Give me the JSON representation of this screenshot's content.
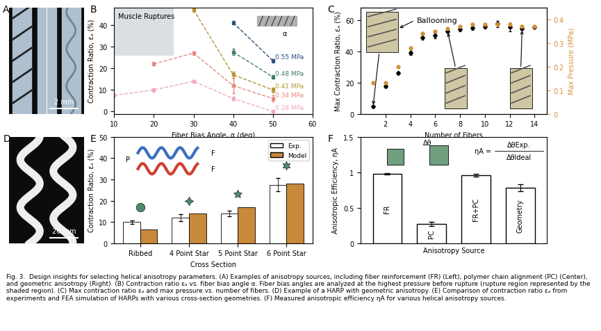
{
  "chart_data": [
    {
      "panel": "A",
      "type": "image",
      "annotations": [
        "2 mm"
      ]
    },
    {
      "panel": "B",
      "type": "line",
      "xlabel": "Fiber Bias Angle, α (deg)",
      "ylabel": "Contraction Ratio, εₐ (%)",
      "xlim": [
        10,
        60
      ],
      "xticks": [
        10,
        20,
        30,
        40,
        50,
        60
      ],
      "ylim": [
        -1,
        48
      ],
      "yticks": [
        0,
        10,
        20,
        30,
        40
      ],
      "annotations": [
        "Muscle Ruptures",
        "α"
      ],
      "series": [
        {
          "name": "0.55 MPa",
          "color": "#2b4f7e",
          "marker": "square",
          "line_style": "dashed",
          "x": [
            40,
            50
          ],
          "values": [
            41,
            23.5
          ],
          "errors": [
            0.8,
            0.8
          ]
        },
        {
          "name": "0.48 MPa",
          "color": "#3f7f63",
          "marker": "square",
          "line_style": "dashed",
          "x": [
            40,
            50
          ],
          "values": [
            27.5,
            16
          ],
          "errors": [
            1.5,
            0.8
          ]
        },
        {
          "name": "0.41 MPa",
          "color": "#b5952f",
          "marker": "square",
          "line_style": "dashed",
          "x": [
            30,
            40,
            50
          ],
          "values": [
            47,
            17,
            10
          ],
          "errors": [
            0.8,
            1.5,
            1.2
          ]
        },
        {
          "name": "0.34 MPa",
          "color": "#e58a80",
          "marker": "square",
          "line_style": "dashed",
          "x": [
            20,
            30,
            40,
            50
          ],
          "values": [
            22,
            27,
            12,
            6
          ],
          "errors": [
            0.8,
            0.8,
            3.5,
            1.5
          ]
        },
        {
          "name": "0.28 MPa",
          "color": "#f2a9bd",
          "marker": "square",
          "line_style": "dashed",
          "x": [
            10,
            20,
            30,
            40,
            50
          ],
          "values": [
            7.5,
            10,
            14,
            6,
            0
          ],
          "errors": [
            0.5,
            0.8,
            0.5,
            0.8,
            0.5
          ]
        }
      ]
    },
    {
      "panel": "C",
      "type": "scatter",
      "xlabel": "Number of Fibers",
      "ylabel": "Max Contraction Ratio, εₐ (%)",
      "y2label": "Max Pressure (MPa)",
      "xlim": [
        0,
        15
      ],
      "xticks": [
        2,
        4,
        6,
        8,
        10,
        12,
        14
      ],
      "ylim": [
        0,
        68
      ],
      "yticks": [
        0,
        20,
        40,
        60
      ],
      "y2lim": [
        0,
        0.45
      ],
      "y2ticks": [
        0,
        0.1,
        0.2,
        0.3,
        0.4
      ],
      "annotations": [
        "Ballooning"
      ],
      "x": [
        1,
        2,
        3,
        4,
        5,
        6,
        7,
        8,
        9,
        10,
        11,
        12,
        13,
        14
      ],
      "series": [
        {
          "color": "#000000",
          "marker": "diamond",
          "values": [
            4.5,
            17.5,
            26,
            39,
            49,
            50,
            53,
            54,
            55,
            56,
            57.5,
            55.5,
            54.5,
            55.5
          ],
          "errors": [
            0.5,
            0.8,
            0.8,
            1.5,
            1.5,
            1.5,
            1,
            1,
            1.2,
            1.5,
            2,
            2.5,
            1,
            1
          ]
        },
        {
          "color": "#d4903a",
          "marker": "circle",
          "axis": "y2",
          "values": [
            0.13,
            0.13,
            0.2,
            0.28,
            0.34,
            0.35,
            0.36,
            0.37,
            0.38,
            0.38,
            0.38,
            0.38,
            0.37,
            0.37
          ]
        }
      ]
    },
    {
      "panel": "D",
      "type": "image",
      "annotations": [
        "20 mm"
      ]
    },
    {
      "panel": "E",
      "type": "bar",
      "xlabel": "Cross Section",
      "ylabel": "Contraction Ratio, εₐ (%)",
      "categories": [
        "Ribbed",
        "4 Point Star",
        "5 Point Star",
        "6 Point Star"
      ],
      "ylim": [
        0,
        50
      ],
      "yticks": [
        0,
        10,
        20,
        30,
        40,
        50
      ],
      "legend": "upper right",
      "annotations": [
        "P",
        "F",
        "F"
      ],
      "series": [
        {
          "name": "Exp.",
          "color": "#ffffff",
          "values": [
            10,
            12,
            14,
            27.5
          ],
          "errors": [
            0.8,
            1.5,
            1.2,
            3
          ]
        },
        {
          "name": "Model",
          "color": "#c8893a",
          "values": [
            6.5,
            14,
            17,
            28
          ]
        }
      ]
    },
    {
      "panel": "F",
      "type": "bar",
      "xlabel": "Anisotropy Source",
      "ylabel": "Anisotropic Efficiency, ηA",
      "categories": [
        "FR",
        "PC",
        "FR+PC",
        "Geometry"
      ],
      "values": [
        0.98,
        0.27,
        0.96,
        0.78
      ],
      "errors": [
        0.01,
        0.03,
        0.02,
        0.05
      ],
      "color": "#ffffff",
      "tick_labels": "y",
      "ylim": [
        0,
        1.5
      ],
      "yticks": [
        0,
        0.5,
        1,
        1.5
      ],
      "annotations": [
        "Δθ",
        "ηA =",
        "ΔθExp.",
        "ΔθIdeal"
      ]
    }
  ],
  "caption": "Fig. 3.  Design insights for selecting helical anisotropy parameters. (A) Examples of anisotropy sources, including fiber reinforcement (FR) (Left), polymer chain alignment (PC) (Center), and geometric anisotropy (Right). (B) Contraction ratio εₐ vs. fiber bias angle α. Fiber bias angles are analyzed at the highest pressure before rupture (rupture region represented by the shaded region). (C) Max contraction ratio εₐ and max pressure vs. number of fibers. (D) Example of a HARP with geometric anisotropy. (E) Comparison of contraction ratio εₐ from experiments and FEA simulation of HARPs with various cross-section geometries. (F) Measured anisotropic efficiency ηA for various helical anisotropy sources."
}
